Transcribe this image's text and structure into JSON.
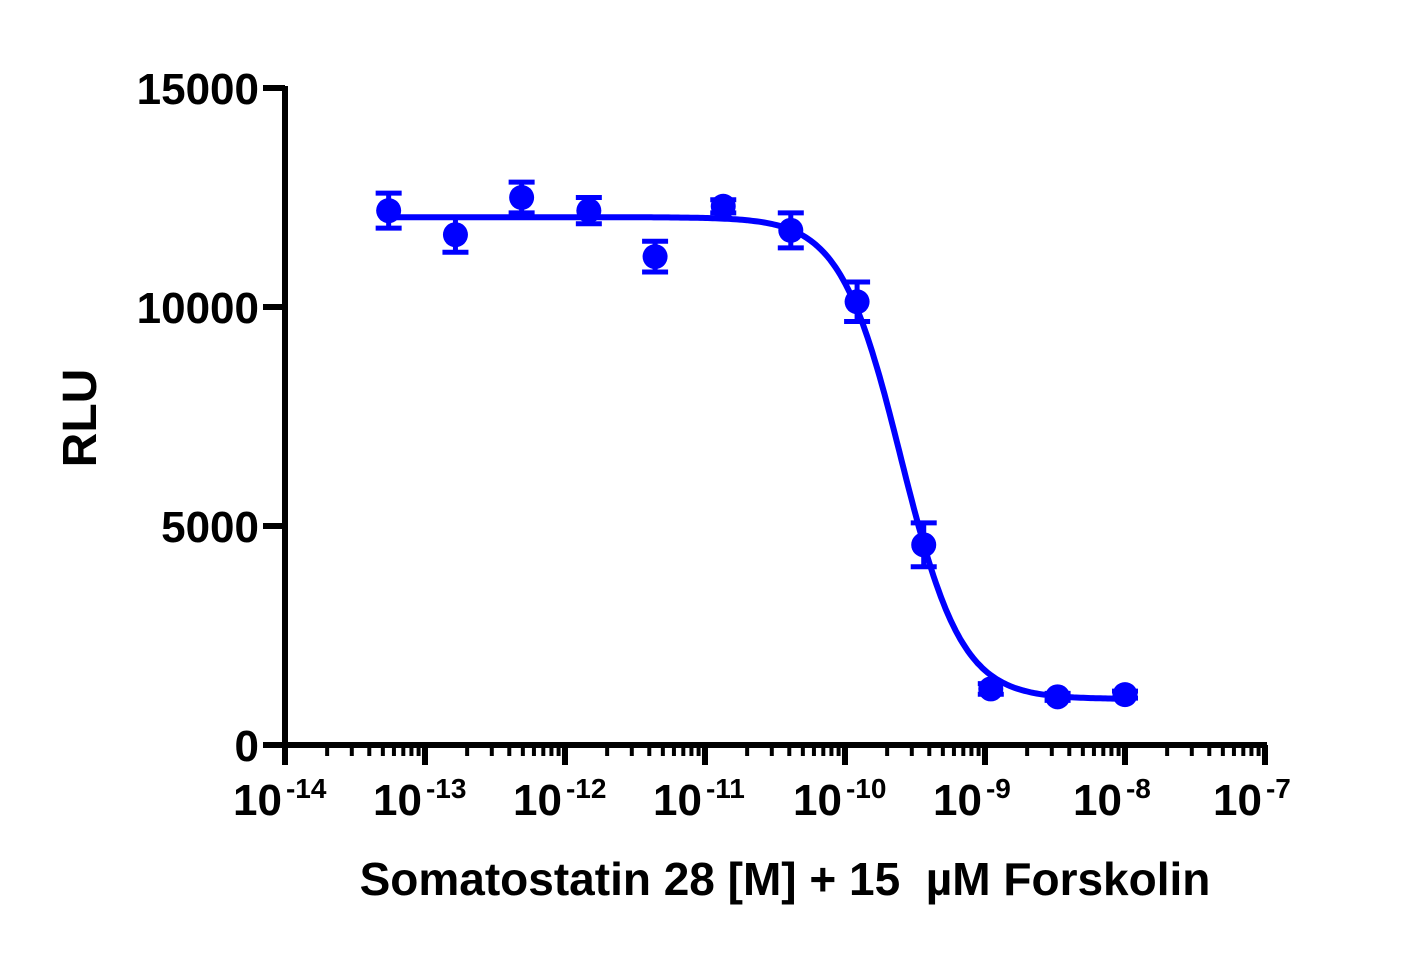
{
  "chart_data": {
    "type": "scatter",
    "title": "",
    "xlabel": "Somatostatin 28 [M] + 15  µM Forskolin",
    "ylabel": "RLU",
    "xscale": "log",
    "xlim": [
      1e-14,
      1e-07
    ],
    "ylim": [
      0,
      15000
    ],
    "grid": false,
    "legend": "none",
    "color": "#0000ff",
    "yticks": [
      {
        "value": 0,
        "label": "0"
      },
      {
        "value": 5000,
        "label": "5000"
      },
      {
        "value": 10000,
        "label": "10000"
      },
      {
        "value": 15000,
        "label": "15000"
      }
    ],
    "xticks": [
      {
        "value": 1e-14,
        "base": "10",
        "exp": "-14"
      },
      {
        "value": 1e-13,
        "base": "10",
        "exp": "-13"
      },
      {
        "value": 1e-12,
        "base": "10",
        "exp": "-12"
      },
      {
        "value": 1e-11,
        "base": "10",
        "exp": "-11"
      },
      {
        "value": 1e-10,
        "base": "10",
        "exp": "-10"
      },
      {
        "value": 1e-09,
        "base": "10",
        "exp": "-9"
      },
      {
        "value": 1e-08,
        "base": "10",
        "exp": "-8"
      },
      {
        "value": 1e-07,
        "base": "10",
        "exp": "-7"
      }
    ],
    "points": [
      {
        "x": 5.5e-14,
        "y": 12200,
        "err": 400
      },
      {
        "x": 1.65e-13,
        "y": 11650,
        "err": 400
      },
      {
        "x": 4.9e-13,
        "y": 12500,
        "err": 350
      },
      {
        "x": 1.48e-12,
        "y": 12200,
        "err": 300
      },
      {
        "x": 4.4e-12,
        "y": 11150,
        "err": 350
      },
      {
        "x": 1.35e-11,
        "y": 12300,
        "err": 150
      },
      {
        "x": 4.1e-11,
        "y": 11750,
        "err": 400
      },
      {
        "x": 1.22e-10,
        "y": 10120,
        "err": 450
      },
      {
        "x": 3.65e-10,
        "y": 4570,
        "err": 500
      },
      {
        "x": 1.1e-09,
        "y": 1280,
        "err": 120
      },
      {
        "x": 3.3e-09,
        "y": 1100,
        "err": 80
      },
      {
        "x": 1e-08,
        "y": 1150,
        "err": 80
      }
    ],
    "fit": {
      "model": "four-parameter logistic",
      "top": 12050,
      "bottom": 1050,
      "logIC50": -9.6,
      "hill_slope": -2.0
    }
  }
}
